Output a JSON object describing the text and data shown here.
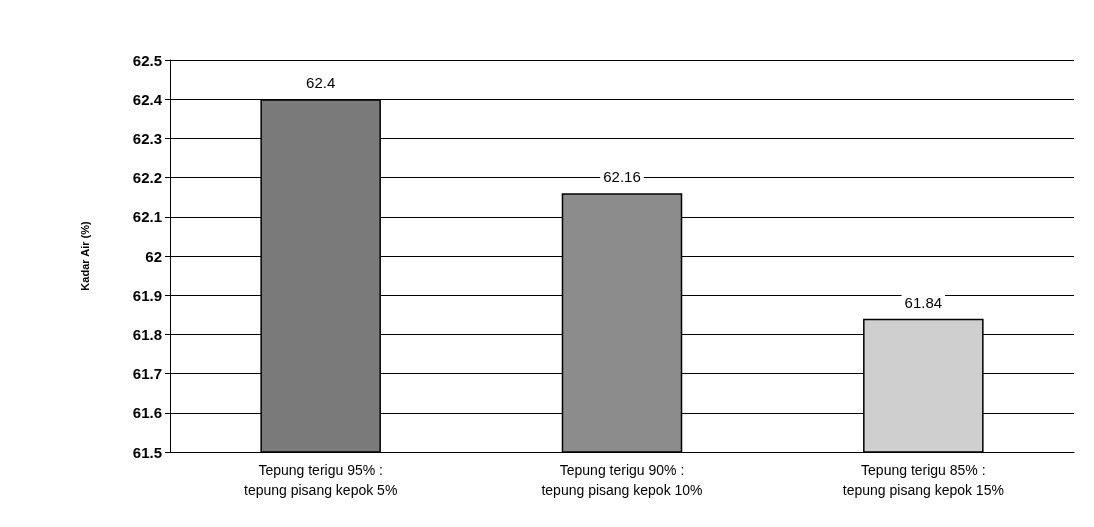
{
  "chart_data": {
    "type": "bar",
    "ylabel": "Kadar Air (%)",
    "categories": [
      "Tepung terigu 95% :\ntepung pisang kepok 5%",
      "Tepung terigu 90% :\ntepung pisang kepok 10%",
      "Tepung terigu 85% :\ntepung pisang kepok 15%"
    ],
    "values": [
      62.4,
      62.16,
      61.84
    ],
    "colors": [
      "#7a7a7a",
      "#8c8c8c",
      "#cfcfcf"
    ],
    "ylim": [
      61.5,
      62.5
    ],
    "yticks": [
      61.5,
      61.6,
      61.7,
      61.8,
      61.9,
      62,
      62.1,
      62.2,
      62.3,
      62.4,
      62.5
    ],
    "grid": "y",
    "data_labels": true
  }
}
